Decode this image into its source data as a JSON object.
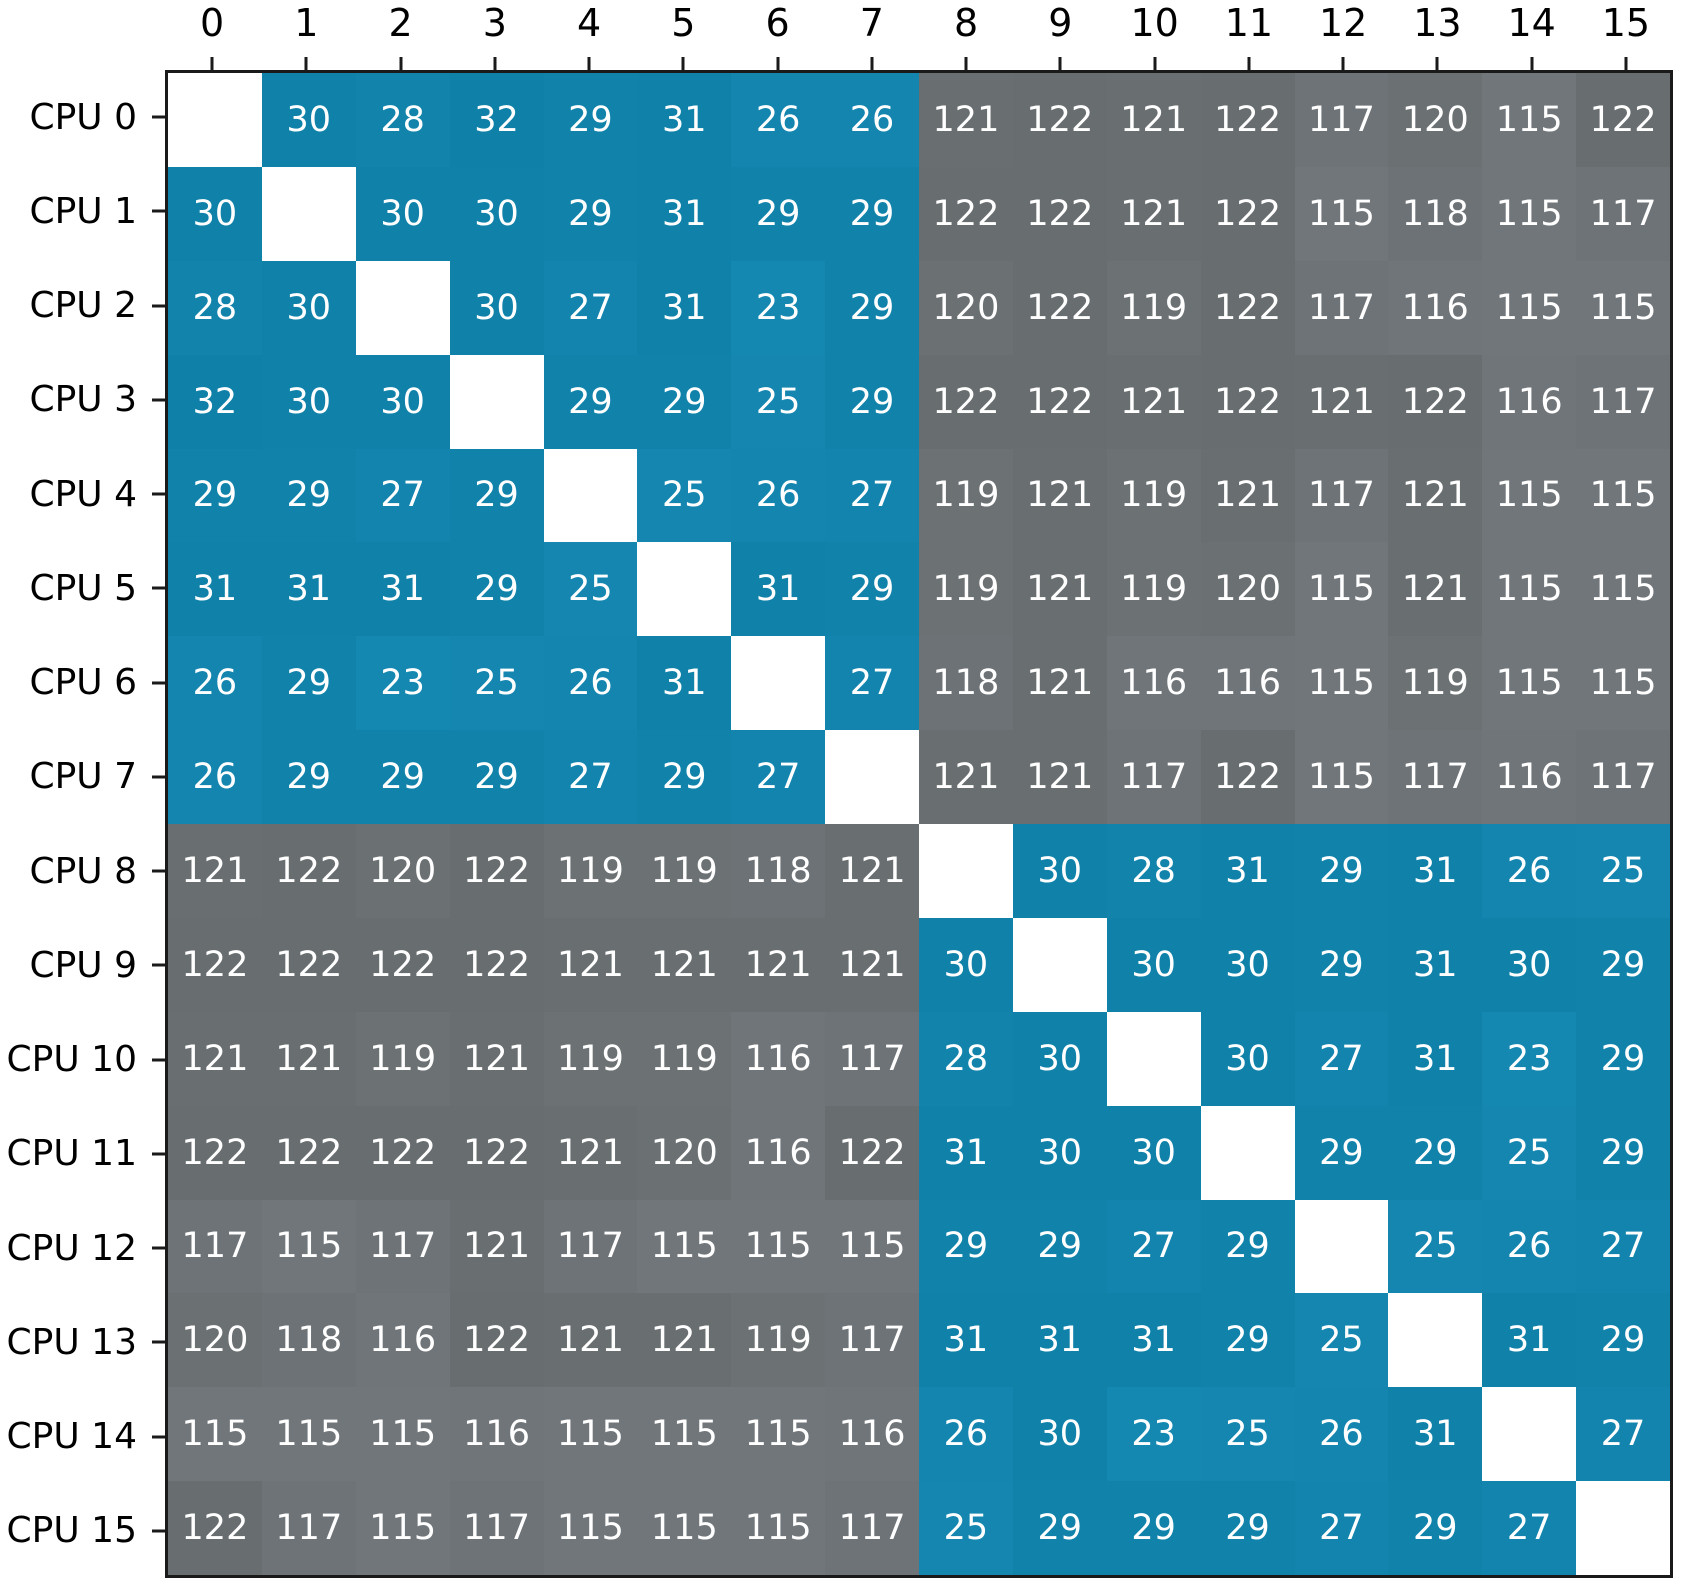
{
  "chart_data": {
    "type": "heatmap",
    "title": "",
    "x_axis": {
      "position": "top",
      "tick_labels": [
        "0",
        "1",
        "2",
        "3",
        "4",
        "5",
        "6",
        "7",
        "8",
        "9",
        "10",
        "11",
        "12",
        "13",
        "14",
        "15"
      ]
    },
    "y_axis": {
      "position": "left",
      "tick_labels": [
        "CPU 0",
        "CPU 1",
        "CPU 2",
        "CPU 3",
        "CPU 4",
        "CPU 5",
        "CPU 6",
        "CPU 7",
        "CPU 8",
        "CPU 9",
        "CPU 10",
        "CPU 11",
        "CPU 12",
        "CPU 13",
        "CPU 14",
        "CPU 15"
      ]
    },
    "matrix": [
      [
        null,
        30,
        28,
        32,
        29,
        31,
        26,
        26,
        121,
        122,
        121,
        122,
        117,
        120,
        115,
        122
      ],
      [
        30,
        null,
        30,
        30,
        29,
        31,
        29,
        29,
        122,
        122,
        121,
        122,
        115,
        118,
        115,
        117
      ],
      [
        28,
        30,
        null,
        30,
        27,
        31,
        23,
        29,
        120,
        122,
        119,
        122,
        117,
        116,
        115,
        115
      ],
      [
        32,
        30,
        30,
        null,
        29,
        29,
        25,
        29,
        122,
        122,
        121,
        122,
        121,
        122,
        116,
        117
      ],
      [
        29,
        29,
        27,
        29,
        null,
        25,
        26,
        27,
        119,
        121,
        119,
        121,
        117,
        121,
        115,
        115
      ],
      [
        31,
        31,
        31,
        29,
        25,
        null,
        31,
        29,
        119,
        121,
        119,
        120,
        115,
        121,
        115,
        115
      ],
      [
        26,
        29,
        23,
        25,
        26,
        31,
        null,
        27,
        118,
        121,
        116,
        116,
        115,
        119,
        115,
        115
      ],
      [
        26,
        29,
        29,
        29,
        27,
        29,
        27,
        null,
        121,
        121,
        117,
        122,
        115,
        117,
        116,
        117
      ],
      [
        121,
        122,
        120,
        122,
        119,
        119,
        118,
        121,
        null,
        30,
        28,
        31,
        29,
        31,
        26,
        25
      ],
      [
        122,
        122,
        122,
        122,
        121,
        121,
        121,
        121,
        30,
        null,
        30,
        30,
        29,
        31,
        30,
        29
      ],
      [
        121,
        121,
        119,
        121,
        119,
        119,
        116,
        117,
        28,
        30,
        null,
        30,
        27,
        31,
        23,
        29
      ],
      [
        122,
        122,
        122,
        122,
        121,
        120,
        116,
        122,
        31,
        30,
        30,
        null,
        29,
        29,
        25,
        29
      ],
      [
        117,
        115,
        117,
        121,
        117,
        115,
        115,
        115,
        29,
        29,
        27,
        29,
        null,
        25,
        26,
        27
      ],
      [
        120,
        118,
        116,
        122,
        121,
        121,
        119,
        117,
        31,
        31,
        31,
        29,
        25,
        null,
        31,
        29
      ],
      [
        115,
        115,
        115,
        116,
        115,
        115,
        115,
        116,
        26,
        30,
        23,
        25,
        26,
        31,
        null,
        27
      ],
      [
        122,
        117,
        115,
        117,
        115,
        115,
        115,
        117,
        25,
        29,
        29,
        29,
        27,
        29,
        27,
        null
      ]
    ],
    "diagonal": "blank",
    "value_clusters": {
      "intra_group_range": [
        23,
        32
      ],
      "cross_group_range": [
        115,
        122
      ]
    },
    "low_high_threshold": 60,
    "colors": {
      "low_cell_light": "#1588b2",
      "low_cell_dark": "#0f80a8",
      "high_cell_light": "#71767a",
      "high_cell_dark": "#686d70",
      "diagonal_cell": "#ffffff",
      "cell_text": "#ffffff",
      "axis_text": "#000000",
      "spine": "#1a1a1a",
      "background": "#ffffff"
    },
    "grid": "off",
    "legend": "none"
  }
}
